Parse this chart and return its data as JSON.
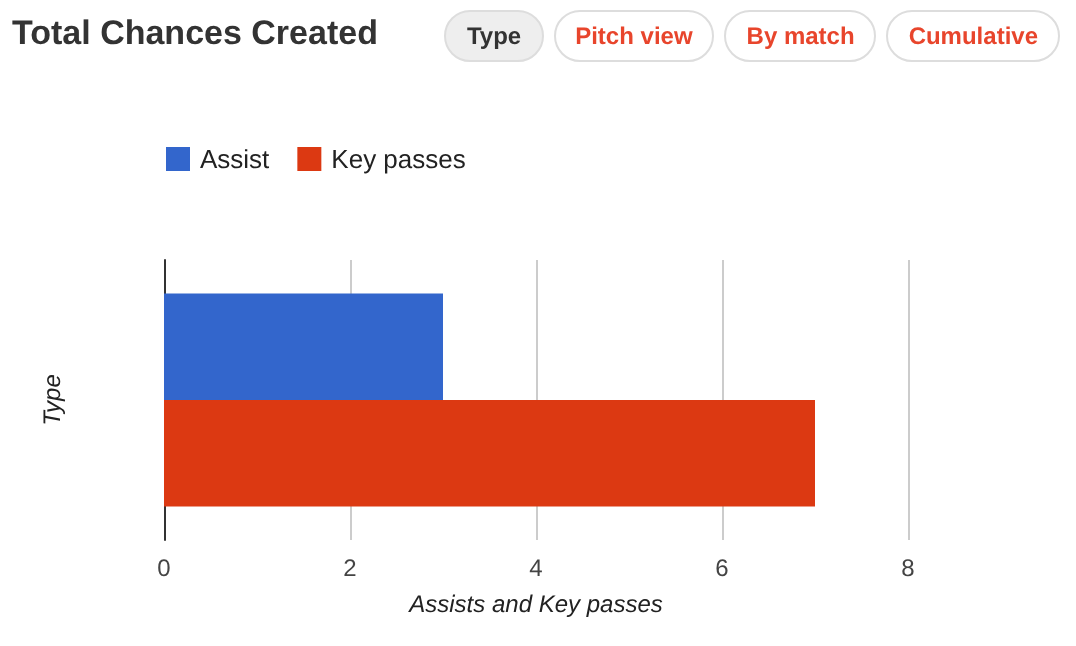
{
  "chart_data": {
    "type": "bar",
    "orientation": "horizontal",
    "title": "Total Chances Created",
    "annotations": [
      "Type",
      "Pitch view",
      "By match",
      "Cumulative"
    ],
    "categories": [
      null
    ],
    "series": [
      {
        "name": "Assist",
        "color": "#3366cc",
        "values": [
          3
        ]
      },
      {
        "name": "Key passes",
        "color": "#dc3912",
        "values": [
          7
        ]
      }
    ],
    "xlabel": "Assists and Key passes",
    "ylabel": "Type",
    "xlim": [
      0,
      8
    ],
    "xticks": [
      0,
      2,
      4,
      6,
      8
    ],
    "grid": "x",
    "legend": "top left"
  }
}
